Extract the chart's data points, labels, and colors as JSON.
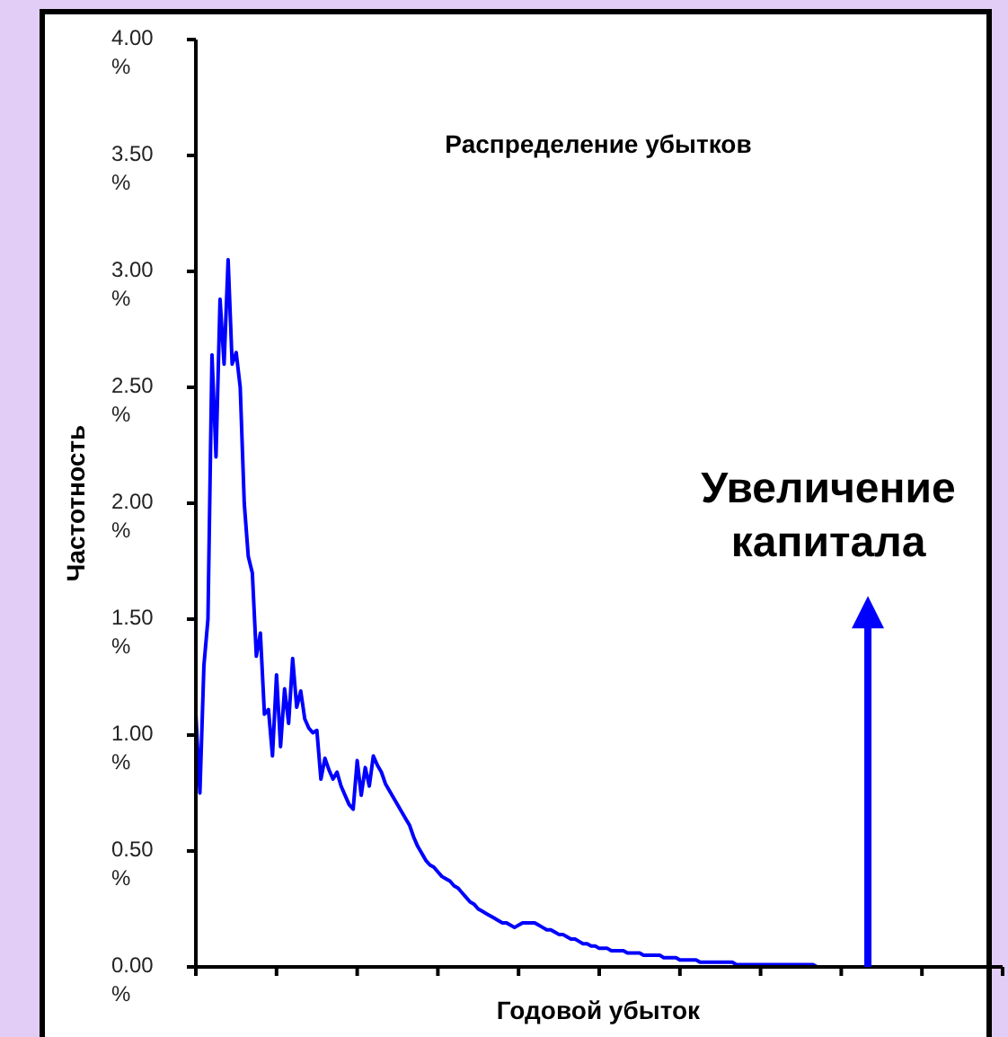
{
  "chart_data": {
    "type": "line",
    "title": "Распределение убытков",
    "xlabel": "Годовой убыток",
    "ylabel": "Частотность",
    "categories": [
      null,
      null,
      null,
      null,
      null,
      null,
      null,
      null,
      null,
      null,
      null,
      null,
      null,
      null,
      null,
      null,
      null,
      null,
      null,
      null,
      null,
      null,
      null,
      null,
      null,
      null,
      null,
      null,
      null,
      null,
      null,
      null,
      null,
      null,
      null,
      null,
      null,
      null,
      null,
      null,
      null,
      null,
      null,
      null,
      null,
      null,
      null,
      null,
      null,
      null,
      null,
      null,
      null,
      null,
      null,
      null,
      null,
      null,
      null,
      null,
      null,
      null,
      null,
      null,
      null,
      null,
      null,
      null,
      null,
      null,
      null,
      null,
      null,
      null,
      null,
      null,
      null,
      null,
      null,
      null,
      null,
      null,
      null,
      null,
      null,
      null,
      null,
      null,
      null,
      null,
      null,
      null,
      null,
      null,
      null,
      null,
      null,
      null,
      null,
      null,
      null,
      null,
      null,
      null,
      null,
      null,
      null,
      null,
      null,
      null,
      null,
      null,
      null,
      null,
      null,
      null,
      null,
      null,
      null,
      null,
      null,
      null,
      null,
      null,
      null,
      null,
      null,
      null,
      null,
      null,
      null,
      null,
      null,
      null,
      null,
      null,
      null,
      null,
      null,
      null,
      null,
      null,
      null,
      null,
      null,
      null,
      null,
      null,
      null,
      null,
      null,
      null,
      null,
      null,
      null,
      null,
      null,
      null,
      null,
      null,
      null,
      null,
      null,
      null,
      null,
      null,
      null,
      null,
      null,
      null,
      null,
      null,
      null,
      null,
      null,
      null,
      null,
      null,
      null,
      null,
      null,
      null,
      null,
      null,
      null,
      null,
      null,
      null,
      null,
      null,
      null,
      null,
      null,
      null,
      null,
      null,
      null,
      null,
      null,
      null,
      null
    ],
    "series": [
      {
        "color": "#0000ff",
        "values": [
          1.09,
          0.75,
          1.3,
          1.5,
          2.64,
          2.2,
          2.88,
          2.6,
          3.05,
          2.6,
          2.65,
          2.5,
          2.0,
          1.77,
          1.7,
          1.34,
          1.44,
          1.09,
          1.11,
          0.91,
          1.26,
          0.95,
          1.2,
          1.05,
          1.33,
          1.12,
          1.19,
          1.07,
          1.03,
          1.01,
          1.02,
          0.81,
          0.9,
          0.85,
          0.81,
          0.84,
          0.78,
          0.74,
          0.7,
          0.68,
          0.89,
          0.74,
          0.86,
          0.78,
          0.91,
          0.87,
          0.84,
          0.79,
          0.76,
          0.73,
          0.7,
          0.67,
          0.64,
          0.61,
          0.56,
          0.52,
          0.49,
          0.46,
          0.44,
          0.43,
          0.41,
          0.39,
          0.38,
          0.37,
          0.35,
          0.34,
          0.32,
          0.3,
          0.28,
          0.27,
          0.25,
          0.24,
          0.23,
          0.22,
          0.21,
          0.2,
          0.19,
          0.19,
          0.18,
          0.17,
          0.18,
          0.19,
          0.19,
          0.19,
          0.19,
          0.18,
          0.17,
          0.16,
          0.16,
          0.15,
          0.14,
          0.14,
          0.13,
          0.12,
          0.12,
          0.11,
          0.1,
          0.1,
          0.09,
          0.09,
          0.08,
          0.08,
          0.08,
          0.07,
          0.07,
          0.07,
          0.07,
          0.06,
          0.06,
          0.06,
          0.06,
          0.05,
          0.05,
          0.05,
          0.05,
          0.05,
          0.04,
          0.04,
          0.04,
          0.04,
          0.03,
          0.03,
          0.03,
          0.03,
          0.03,
          0.02,
          0.02,
          0.02,
          0.02,
          0.02,
          0.02,
          0.02,
          0.02,
          0.02,
          0.01,
          0.01,
          0.01,
          0.01,
          0.01,
          0.01,
          0.01,
          0.01,
          0.01,
          0.01,
          0.01,
          0.01,
          0.01,
          0.01,
          0.01,
          0.01,
          0.01,
          0.01,
          0.01,
          0.01,
          0,
          0,
          0,
          0,
          0,
          0,
          0,
          0,
          0,
          0,
          0,
          0,
          0,
          0,
          0,
          0,
          0,
          null,
          null,
          null,
          null,
          null,
          null,
          null,
          null,
          null,
          null,
          null,
          null,
          null,
          null,
          null,
          null,
          null,
          null,
          null,
          null,
          null,
          null,
          null,
          null,
          null,
          null,
          null,
          null,
          null,
          null
        ]
      }
    ],
    "ylim": [
      0,
      4
    ],
    "yticks": [
      {
        "value": 0,
        "label": "0.00 %"
      },
      {
        "value": 0.5,
        "label": "0.50 %"
      },
      {
        "value": 1,
        "label": "1.00 %"
      },
      {
        "value": 1.5,
        "label": "1.50 %"
      },
      {
        "value": 2,
        "label": "2.00 %"
      },
      {
        "value": 2.5,
        "label": "2.50 %"
      },
      {
        "value": 3,
        "label": "3.00 %"
      },
      {
        "value": 3.5,
        "label": "3.50 %"
      },
      {
        "value": 4,
        "label": "4.00 %"
      }
    ],
    "grid": false,
    "legend": false,
    "marker": "none",
    "line_style": "solid",
    "annotations": [
      "Увеличение капитала"
    ]
  }
}
